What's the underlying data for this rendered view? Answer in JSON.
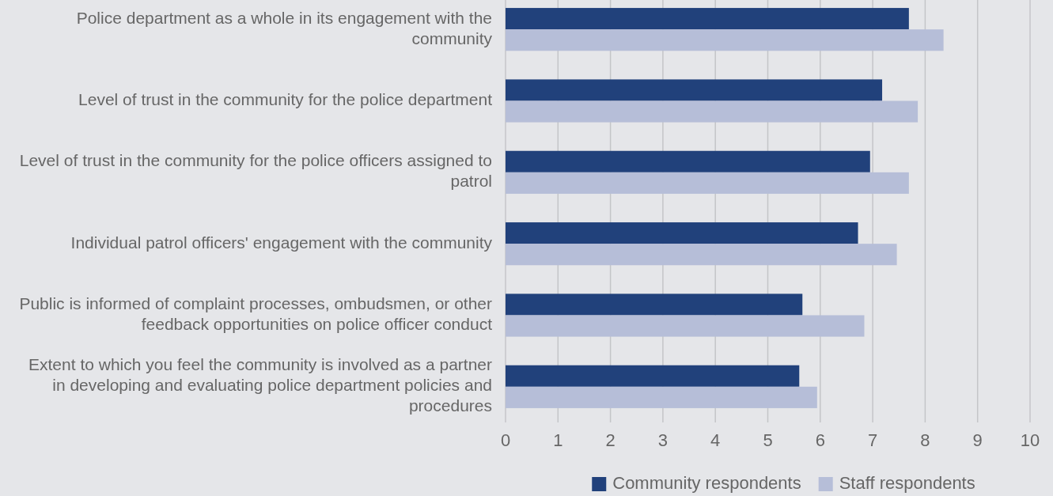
{
  "chart_data": {
    "type": "bar",
    "orientation": "horizontal",
    "categories": [
      "Police department as a whole in its engagement with the community",
      "Level of trust in the community for the police department",
      "Level of trust in the community for the police officers assigned to patrol",
      "Individual patrol officers' engagement with the community",
      "Public is informed of complaint processes, ombudsmen, or other feedback opportunities on police officer conduct",
      "Extent to which you feel the community is involved as a partner in developing and evaluating police department policies and procedures"
    ],
    "series": [
      {
        "name": "Community respondents",
        "color": "#21417b",
        "values": [
          7.69,
          7.18,
          6.95,
          6.72,
          5.66,
          5.6
        ]
      },
      {
        "name": "Staff respondents",
        "color": "#b6bed8",
        "values": [
          8.35,
          7.86,
          7.69,
          7.46,
          6.84,
          5.94
        ]
      }
    ],
    "xlim": [
      0,
      10
    ],
    "xticks": [
      0,
      1,
      2,
      3,
      4,
      5,
      6,
      7,
      8,
      9,
      10
    ],
    "grid": "x",
    "legend": "bottom"
  }
}
